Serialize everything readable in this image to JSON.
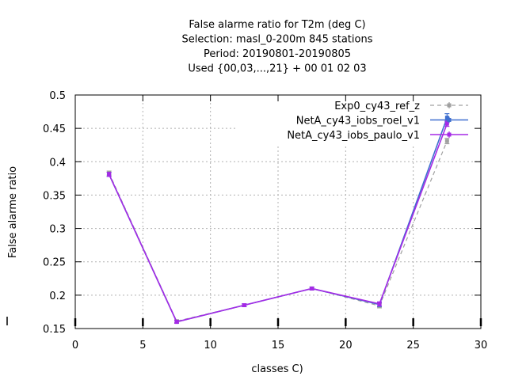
{
  "chart_data": {
    "type": "line",
    "title": [
      "False alarme ratio  for T2m (deg C)",
      "Selection: masl_0-200m    845 stations",
      "Period: 20190801-20190805",
      "Used {00,03,...,21} + 00 01 02 03"
    ],
    "xlabel": "classes C)",
    "ylabel": "False alarme ratio",
    "xlim": [
      0,
      30
    ],
    "ylim": [
      0.15,
      0.5
    ],
    "xticks": [
      "0",
      "5",
      "10",
      "15",
      "20",
      "25",
      "30"
    ],
    "yticks": [
      "0.15",
      "0.2",
      "0.25",
      "0.3",
      "0.35",
      "0.4",
      "0.45",
      "0.5"
    ],
    "grid": true,
    "legend_position": "top-right",
    "series": [
      {
        "name": "Exp0_cy43_ref_z",
        "color": "#a0a0a0",
        "dash": true,
        "points": [
          [
            2.5,
            0.383
          ],
          [
            7.5,
            0.161
          ],
          [
            12.5,
            0.185
          ],
          [
            17.5,
            0.21
          ],
          [
            22.5,
            0.184
          ],
          [
            27.5,
            0.431
          ]
        ],
        "err": [
          0.003,
          0.002,
          0.002,
          0.002,
          0.003,
          0.004
        ]
      },
      {
        "name": "NetA_cy43_iobs_roel_v1",
        "color": "#3f6fcf",
        "dash": false,
        "points": [
          [
            2.5,
            0.381
          ],
          [
            7.5,
            0.16
          ],
          [
            12.5,
            0.185
          ],
          [
            17.5,
            0.21
          ],
          [
            22.5,
            0.186
          ],
          [
            27.5,
            0.466
          ]
        ],
        "err": [
          0.003,
          0.002,
          0.002,
          0.002,
          0.003,
          0.006
        ]
      },
      {
        "name": "NetA_cy43_iobs_paulo_v1",
        "color": "#a52ae6",
        "dash": false,
        "points": [
          [
            2.5,
            0.381
          ],
          [
            7.5,
            0.16
          ],
          [
            12.5,
            0.185
          ],
          [
            17.5,
            0.21
          ],
          [
            22.5,
            0.187
          ],
          [
            27.5,
            0.457
          ]
        ],
        "err": [
          0.003,
          0.002,
          0.002,
          0.002,
          0.003,
          0.004
        ]
      }
    ]
  }
}
